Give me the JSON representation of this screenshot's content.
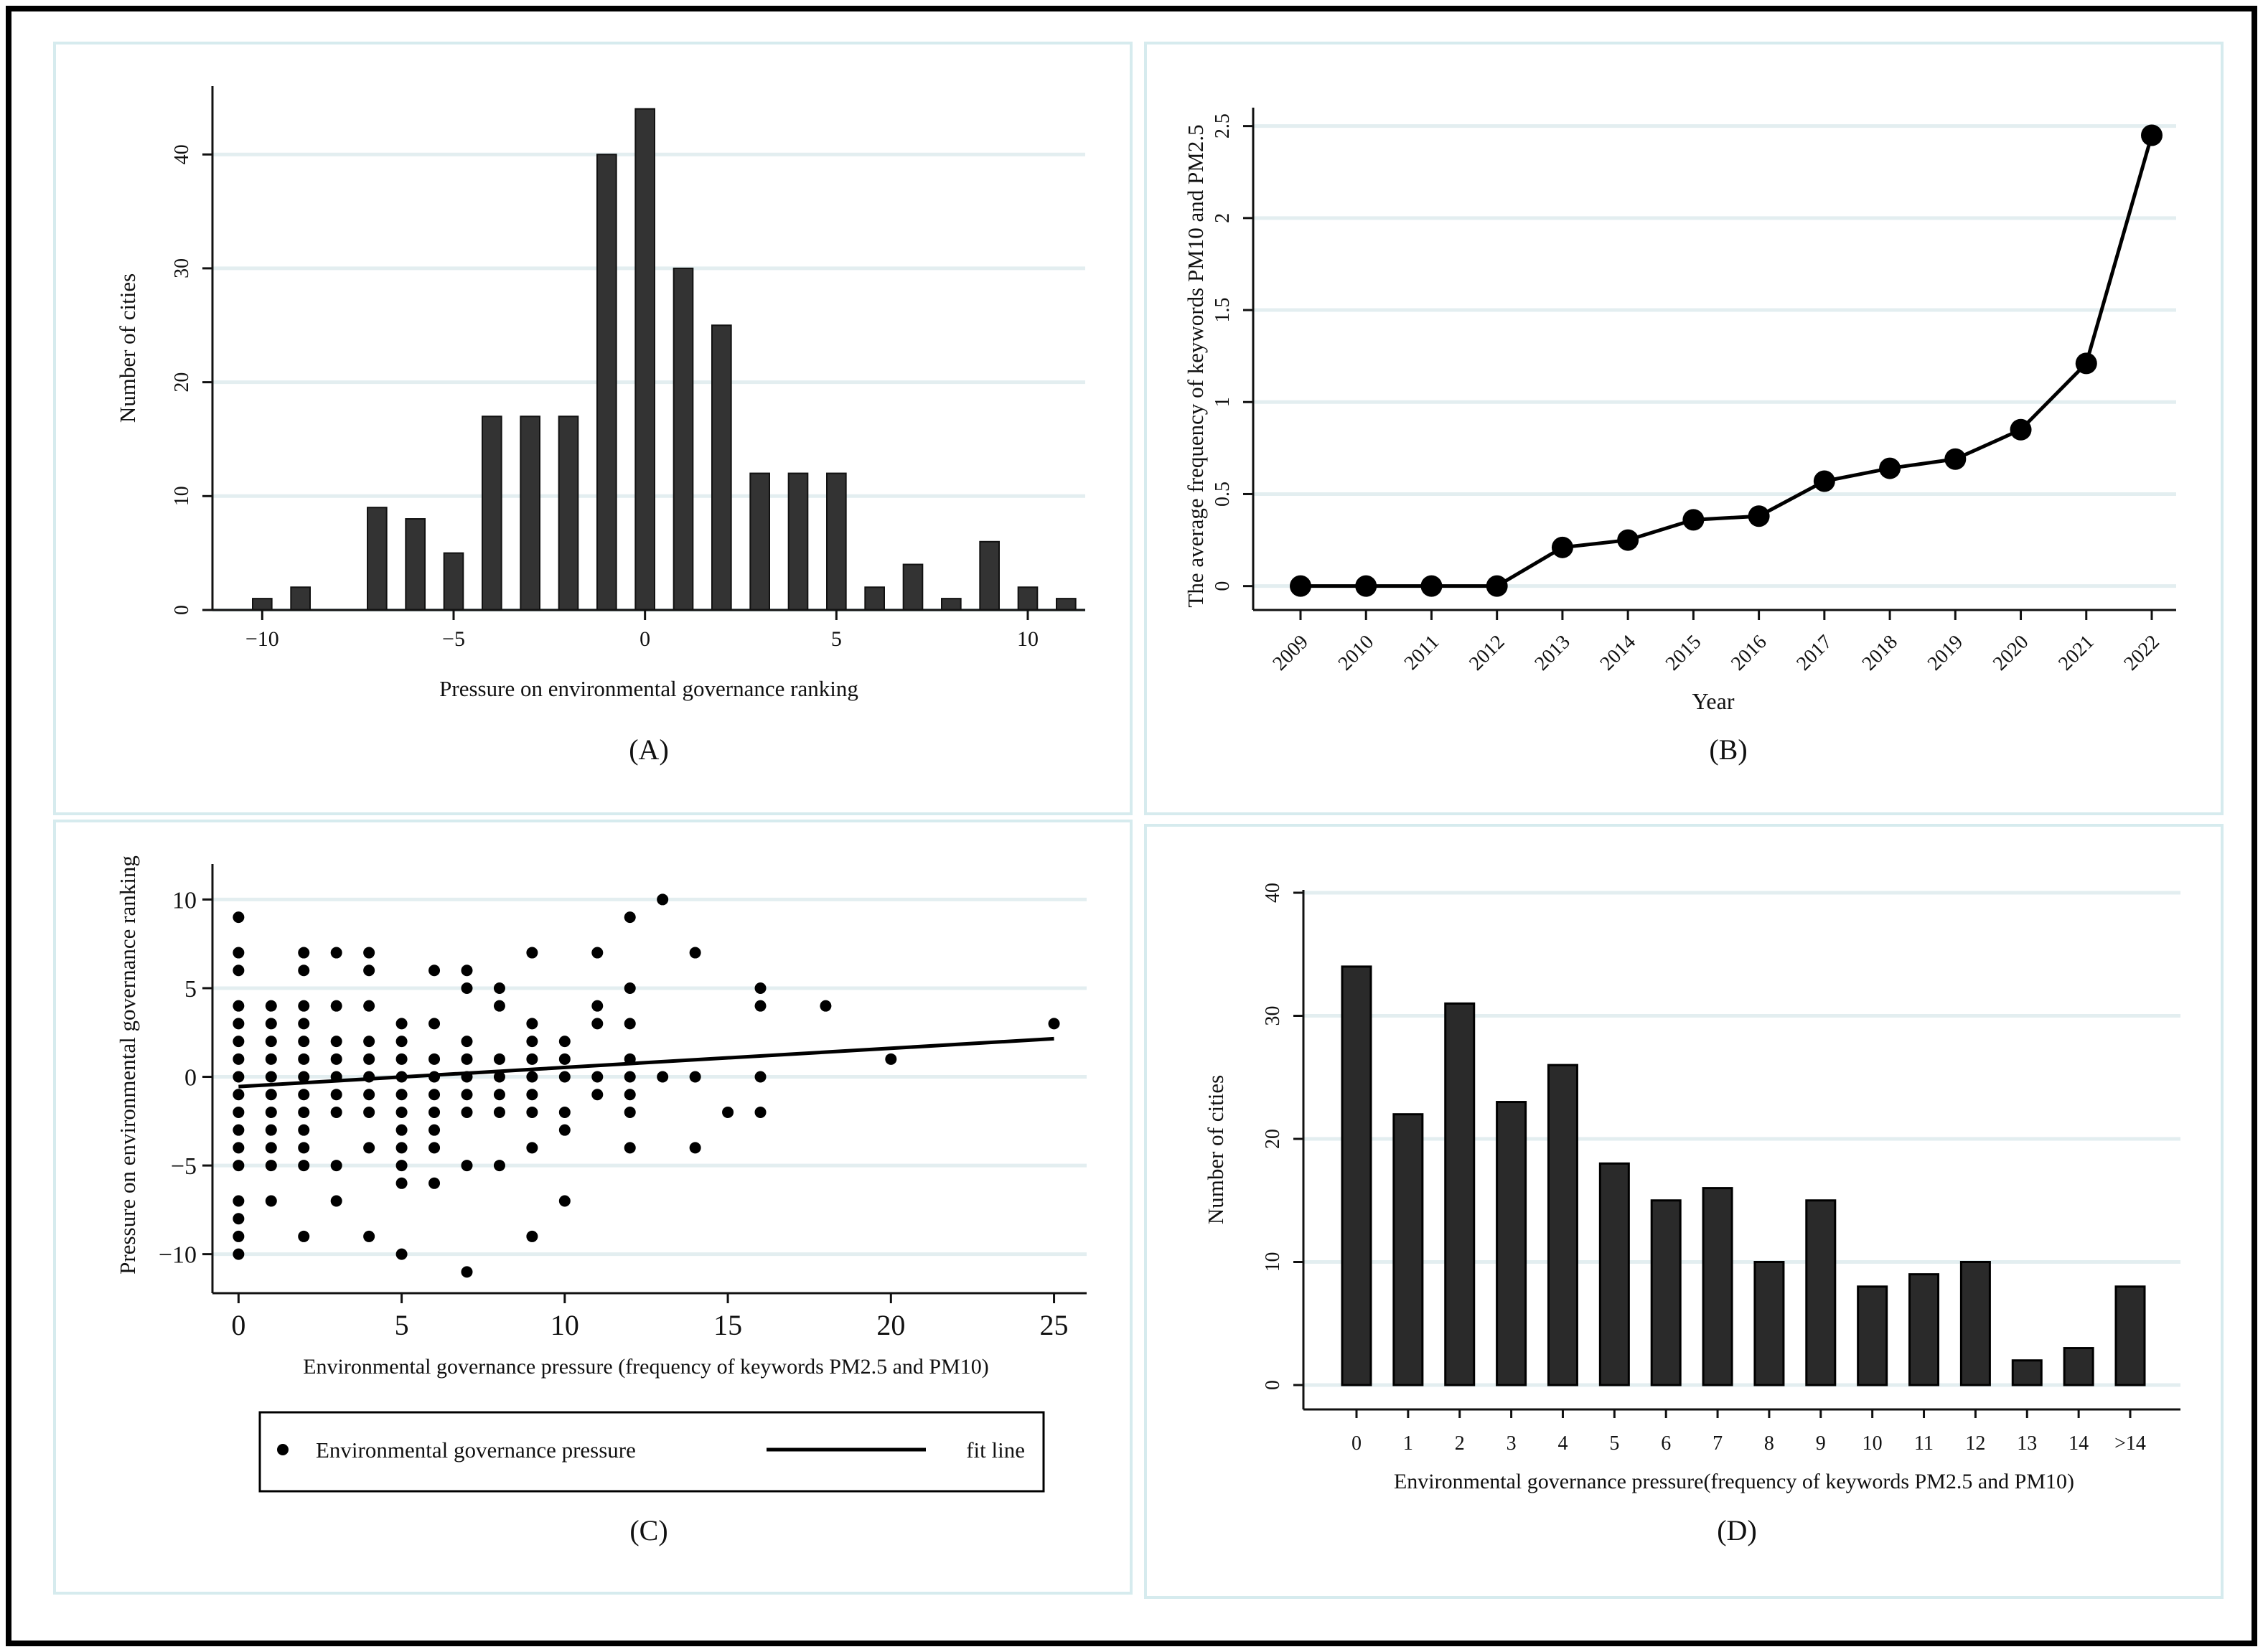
{
  "colors": {
    "bar": "#333333",
    "bar_dark": "#2a2a2a",
    "grid": "#e3eef0",
    "panel_border": "#d6ebee",
    "ink": "#111111"
  },
  "chart_data": [
    {
      "id": "A",
      "type": "bar",
      "panel_label": "(A)",
      "xlabel": "Pressure on environmental governance ranking",
      "ylabel": "Number of cities",
      "x": [
        -10,
        -9,
        -7,
        -6,
        -5,
        -4,
        -3,
        -2,
        -1,
        0,
        1,
        2,
        3,
        4,
        5,
        6,
        7,
        8,
        9,
        10,
        11
      ],
      "values": [
        1,
        2,
        9,
        8,
        5,
        17,
        17,
        17,
        40,
        44,
        30,
        25,
        12,
        12,
        12,
        2,
        4,
        1,
        6,
        2,
        1
      ],
      "xlim": [
        -11.3,
        11.5
      ],
      "ylim": [
        0,
        46
      ],
      "xticks": [
        -10,
        -5,
        0,
        5,
        10
      ],
      "xtick_labels": [
        "−10",
        "−5",
        "0",
        "5",
        "10"
      ],
      "yticks": [
        0,
        10,
        20,
        30,
        40
      ],
      "ytick_labels": [
        "0",
        "10",
        "20",
        "30",
        "40"
      ],
      "grid": true
    },
    {
      "id": "B",
      "type": "line",
      "panel_label": "(B)",
      "xlabel": "Year",
      "ylabel": "The average frequency of  keywords PM10 and PM2.5",
      "categories": [
        "2009",
        "2010",
        "2011",
        "2012",
        "2013",
        "2014",
        "2015",
        "2016",
        "2017",
        "2018",
        "2019",
        "2020",
        "2021",
        "2022"
      ],
      "values": [
        0,
        0,
        0,
        0,
        0.21,
        0.25,
        0.36,
        0.38,
        0.57,
        0.64,
        0.69,
        0.85,
        1.21,
        2.45
      ],
      "ylim": [
        -0.13,
        2.6
      ],
      "yticks": [
        0,
        0.5,
        1,
        1.5,
        2,
        2.5
      ],
      "ytick_labels": [
        "0",
        "0.5",
        "1",
        "1.5",
        "2",
        "2.5"
      ],
      "grid": true
    },
    {
      "id": "C",
      "type": "scatter",
      "panel_label": "(C)",
      "xlabel": "Environmental governance pressure (frequency of  keywords PM2.5 and PM10)",
      "ylabel": "Pressure on environmental governance ranking",
      "xlim": [
        -0.8,
        26
      ],
      "ylim": [
        -12.2,
        12
      ],
      "xticks": [
        0,
        5,
        10,
        15,
        20,
        25
      ],
      "xtick_labels": [
        "0",
        "5",
        "10",
        "15",
        "20",
        "25"
      ],
      "yticks": [
        -10,
        -5,
        0,
        5,
        10
      ],
      "ytick_labels": [
        "−10",
        "−5",
        "0",
        "5",
        "10"
      ],
      "grid": true,
      "legend": {
        "position": "bottom",
        "items": [
          {
            "name": "Environmental governance pressure",
            "marker": "dot"
          },
          {
            "name": "fit line",
            "marker": "line"
          }
        ]
      },
      "fit_line": {
        "x": [
          0,
          25
        ],
        "y": [
          -0.55,
          2.15
        ]
      },
      "points": [
        [
          0,
          9
        ],
        [
          0,
          7
        ],
        [
          0,
          6
        ],
        [
          0,
          4
        ],
        [
          0,
          3
        ],
        [
          0,
          2
        ],
        [
          0,
          1
        ],
        [
          0,
          0
        ],
        [
          0,
          -1
        ],
        [
          0,
          -2
        ],
        [
          0,
          -3
        ],
        [
          0,
          -4
        ],
        [
          0,
          -5
        ],
        [
          0,
          -7
        ],
        [
          0,
          -8
        ],
        [
          0,
          -9
        ],
        [
          0,
          -10
        ],
        [
          1,
          4
        ],
        [
          1,
          3
        ],
        [
          1,
          2
        ],
        [
          1,
          1
        ],
        [
          1,
          0
        ],
        [
          1,
          -1
        ],
        [
          1,
          -2
        ],
        [
          1,
          -3
        ],
        [
          1,
          -4
        ],
        [
          1,
          -5
        ],
        [
          1,
          -7
        ],
        [
          2,
          7
        ],
        [
          2,
          6
        ],
        [
          2,
          4
        ],
        [
          2,
          3
        ],
        [
          2,
          2
        ],
        [
          2,
          1
        ],
        [
          2,
          0
        ],
        [
          2,
          -1
        ],
        [
          2,
          -2
        ],
        [
          2,
          -3
        ],
        [
          2,
          -4
        ],
        [
          2,
          -5
        ],
        [
          2,
          -9
        ],
        [
          3,
          7
        ],
        [
          3,
          4
        ],
        [
          3,
          2
        ],
        [
          3,
          1
        ],
        [
          3,
          0
        ],
        [
          3,
          -1
        ],
        [
          3,
          -2
        ],
        [
          3,
          -5
        ],
        [
          3,
          -7
        ],
        [
          4,
          7
        ],
        [
          4,
          6
        ],
        [
          4,
          4
        ],
        [
          4,
          2
        ],
        [
          4,
          1
        ],
        [
          4,
          0
        ],
        [
          4,
          -1
        ],
        [
          4,
          -2
        ],
        [
          4,
          -4
        ],
        [
          4,
          -9
        ],
        [
          5,
          3
        ],
        [
          5,
          2
        ],
        [
          5,
          1
        ],
        [
          5,
          0
        ],
        [
          5,
          -1
        ],
        [
          5,
          -2
        ],
        [
          5,
          -3
        ],
        [
          5,
          -4
        ],
        [
          5,
          -5
        ],
        [
          5,
          -6
        ],
        [
          5,
          -10
        ],
        [
          6,
          6
        ],
        [
          6,
          3
        ],
        [
          6,
          1
        ],
        [
          6,
          0
        ],
        [
          6,
          -1
        ],
        [
          6,
          -2
        ],
        [
          6,
          -3
        ],
        [
          6,
          -4
        ],
        [
          6,
          -6
        ],
        [
          7,
          6
        ],
        [
          7,
          5
        ],
        [
          7,
          2
        ],
        [
          7,
          1
        ],
        [
          7,
          0
        ],
        [
          7,
          -1
        ],
        [
          7,
          -2
        ],
        [
          7,
          -5
        ],
        [
          7,
          -11
        ],
        [
          8,
          5
        ],
        [
          8,
          4
        ],
        [
          8,
          1
        ],
        [
          8,
          0
        ],
        [
          8,
          -1
        ],
        [
          8,
          -2
        ],
        [
          8,
          -5
        ],
        [
          9,
          7
        ],
        [
          9,
          3
        ],
        [
          9,
          2
        ],
        [
          9,
          1
        ],
        [
          9,
          0
        ],
        [
          9,
          -1
        ],
        [
          9,
          -2
        ],
        [
          9,
          -4
        ],
        [
          9,
          -9
        ],
        [
          10,
          2
        ],
        [
          10,
          1
        ],
        [
          10,
          0
        ],
        [
          10,
          -2
        ],
        [
          10,
          -3
        ],
        [
          10,
          -7
        ],
        [
          11,
          7
        ],
        [
          11,
          4
        ],
        [
          11,
          3
        ],
        [
          11,
          0
        ],
        [
          11,
          -1
        ],
        [
          12,
          9
        ],
        [
          12,
          5
        ],
        [
          12,
          3
        ],
        [
          12,
          1
        ],
        [
          12,
          0
        ],
        [
          12,
          -1
        ],
        [
          12,
          -2
        ],
        [
          12,
          -4
        ],
        [
          13,
          10
        ],
        [
          13,
          0
        ],
        [
          14,
          7
        ],
        [
          14,
          0
        ],
        [
          14,
          -4
        ],
        [
          15,
          -2
        ],
        [
          16,
          5
        ],
        [
          16,
          4
        ],
        [
          16,
          0
        ],
        [
          16,
          -2
        ],
        [
          18,
          4
        ],
        [
          20,
          1
        ],
        [
          25,
          3
        ]
      ]
    },
    {
      "id": "D",
      "type": "bar",
      "panel_label": "(D)",
      "xlabel": "Environmental governance pressure(frequency of  keywords PM2.5 and PM10)",
      "ylabel": "Number of cities",
      "categories": [
        "0",
        "1",
        "2",
        "3",
        "4",
        "5",
        "6",
        "7",
        "8",
        "9",
        "10",
        "11",
        "12",
        "13",
        "14",
        ">14"
      ],
      "values": [
        34,
        22,
        31,
        23,
        26,
        18,
        15,
        16,
        10,
        15,
        8,
        9,
        10,
        2,
        3,
        8
      ],
      "ylim": [
        0,
        40
      ],
      "yticks": [
        0,
        10,
        20,
        30,
        40
      ],
      "ytick_labels": [
        "0",
        "10",
        "20",
        "30",
        "40"
      ],
      "grid": true
    }
  ]
}
